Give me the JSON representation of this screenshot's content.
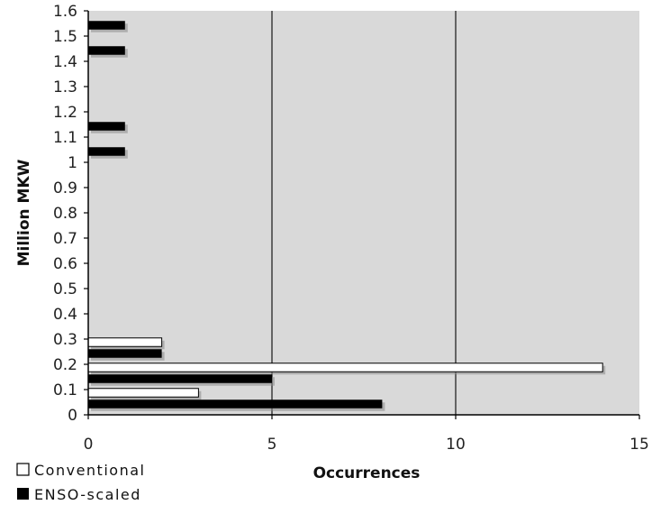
{
  "chart_data": {
    "type": "bar",
    "orientation": "horizontal",
    "xlabel": "Occurrences",
    "ylabel": "Million MKW",
    "xlim": [
      0,
      15
    ],
    "ylim": [
      0,
      1.6
    ],
    "x_ticks": [
      "0",
      "5",
      "10",
      "15"
    ],
    "y_ticks": [
      "0",
      "0.1",
      "0.2",
      "0.3",
      "0.4",
      "0.5",
      "0.6",
      "0.7",
      "0.8",
      "0.9",
      "1",
      "1.1",
      "1.2",
      "1.3",
      "1.4",
      "1.5",
      "1.6"
    ],
    "grid": "vertical lines at 5 and 10",
    "legend_position": "bottom-left",
    "bins": [
      0,
      0.1,
      0.2,
      1.0,
      1.1,
      1.4,
      1.5
    ],
    "series": [
      {
        "name": "Conventional",
        "fill": "#ffffff",
        "values": [
          3,
          14,
          2,
          0,
          0,
          0,
          0
        ]
      },
      {
        "name": "ENSO-scaled",
        "fill": "#000000",
        "values": [
          8,
          5,
          2,
          1,
          1,
          1,
          1
        ]
      }
    ],
    "plot_background": "#d9d9d9"
  }
}
